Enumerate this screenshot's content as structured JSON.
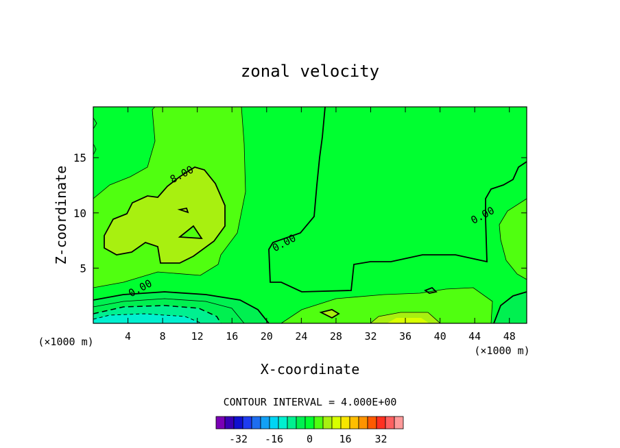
{
  "chart_data": {
    "type": "contour",
    "title": "zonal velocity",
    "xlabel": "X-coordinate",
    "ylabel": "Z-coordinate",
    "x_unit_label": "(×1000 m)",
    "y_unit_label": "(×1000 m)",
    "xlim": [
      0,
      50
    ],
    "ylim": [
      0,
      19.6
    ],
    "x_ticks": [
      4,
      8,
      12,
      16,
      20,
      24,
      28,
      32,
      36,
      40,
      44,
      48
    ],
    "y_ticks": [
      5,
      10,
      15
    ],
    "contour_interval_text": "CONTOUR INTERVAL = 4.000E+00",
    "contour_interval": 4,
    "contour_labels": [
      {
        "text": "8.00",
        "level": 8,
        "at": [
          10.4,
          13.2
        ]
      },
      {
        "text": "0.00",
        "level": 0,
        "at": [
          22.2,
          7.0
        ]
      },
      {
        "text": "0.00",
        "level": 0,
        "at": [
          45.1,
          9.5
        ]
      },
      {
        "text": "0.00",
        "level": 0,
        "at": [
          5.6,
          2.9
        ]
      }
    ],
    "colorbar": {
      "min": -40,
      "max": 40,
      "step": 4,
      "tick_labels": [
        "-32",
        "-16",
        "0",
        "16",
        "32"
      ],
      "tick_values": [
        -32,
        -16,
        0,
        16,
        32
      ],
      "colors": [
        "#7a00b5",
        "#3a00b5",
        "#1010d0",
        "#1e3cf0",
        "#1e6ef0",
        "#12a0f5",
        "#00d5f5",
        "#00f0d0",
        "#00f090",
        "#00f050",
        "#00ff30",
        "#50ff10",
        "#a8f010",
        "#d8ff00",
        "#f8e600",
        "#ffbe00",
        "#ff9400",
        "#ff5a00",
        "#ff3020",
        "#ff6060",
        "#ff9a9a"
      ]
    },
    "region_colors": {
      "u_-20_-16": "#00f0d0",
      "u_-16_-12": "#00f0d0",
      "u_-12_-8": "#00f090",
      "u_-8_-4": "#00f050",
      "u_-4_0": "#00f050",
      "u_0_4": "#00ff30",
      "u_4_8": "#50ff10",
      "u_8_12": "#a8f010",
      "u_12_16": "#d8ff00"
    }
  }
}
